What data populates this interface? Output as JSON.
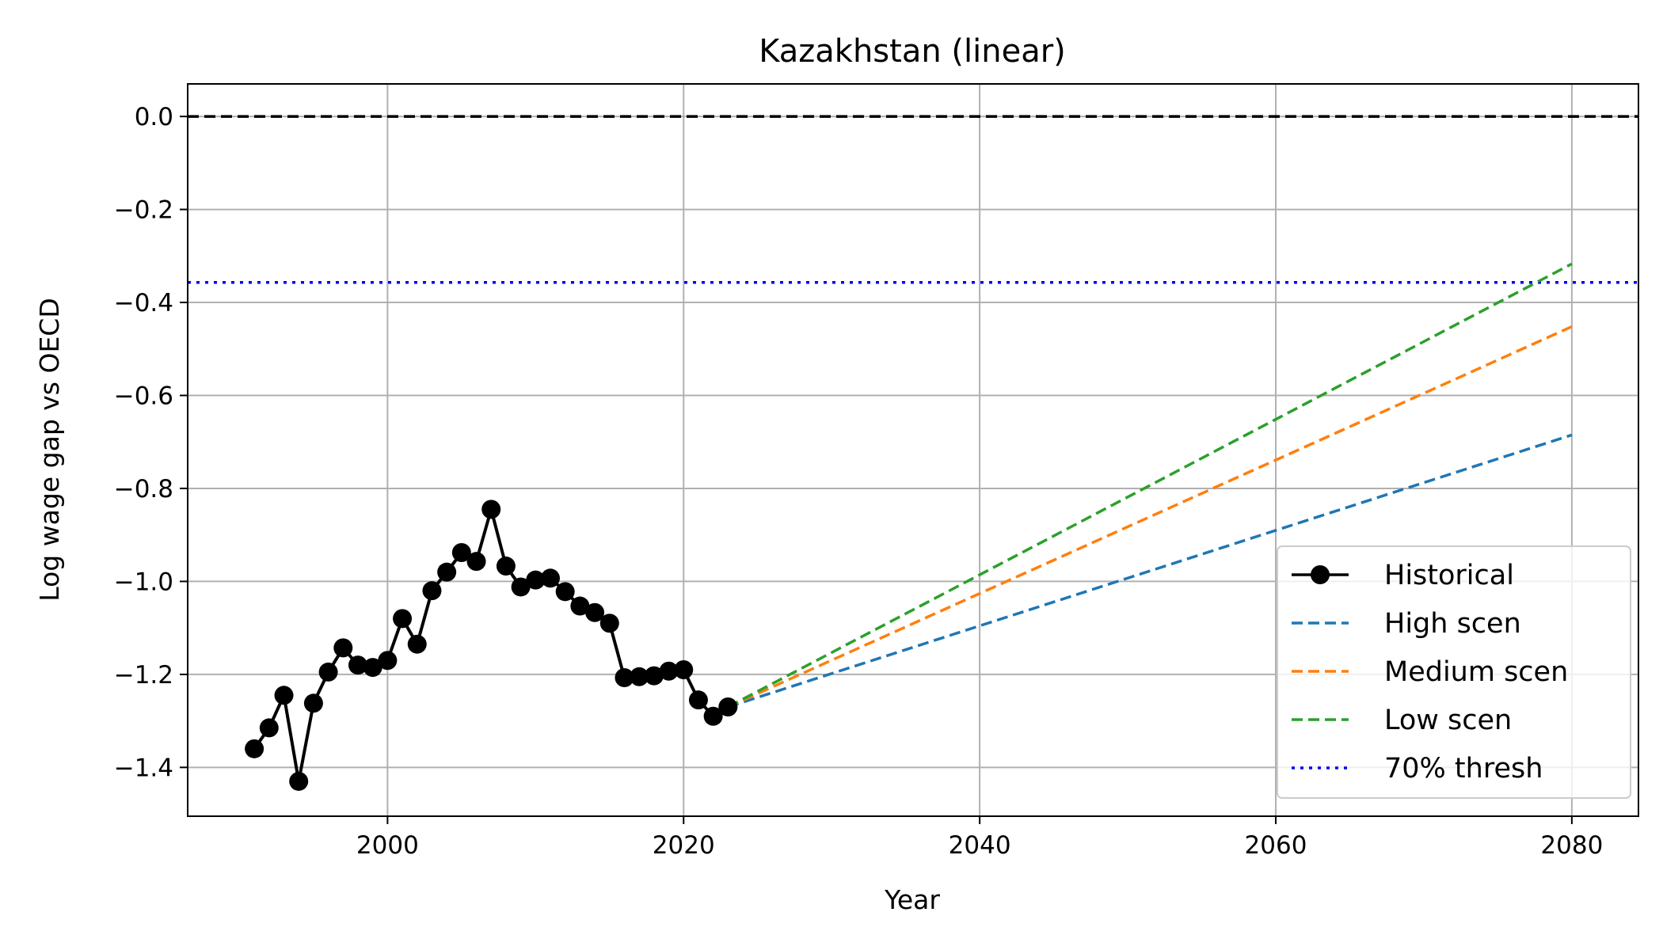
{
  "chart_data": {
    "type": "line",
    "title": "Kazakhstan (linear)",
    "xlabel": "Year",
    "ylabel": "Log wage gap vs OECD",
    "xlim": [
      1986.5,
      2084.5
    ],
    "ylim": [
      -1.505,
      0.07
    ],
    "xticks": [
      2000,
      2020,
      2040,
      2060,
      2080
    ],
    "yticks": [
      0.0,
      -0.2,
      -0.4,
      -0.6,
      -0.8,
      -1.0,
      -1.2,
      -1.4
    ],
    "xtick_labels": [
      "2000",
      "2020",
      "2040",
      "2060",
      "2080"
    ],
    "ytick_labels": [
      "0.0",
      "−0.2",
      "−0.4",
      "−0.6",
      "−0.8",
      "−1.0",
      "−1.2",
      "−1.4"
    ],
    "grid": true,
    "legend_position": "lower-right",
    "reference_lines": [
      {
        "y": 0.0,
        "color": "#000000",
        "style": "dashed"
      },
      {
        "name": "70% thresh",
        "y": -0.357,
        "color": "#0000ff",
        "style": "dotted"
      }
    ],
    "series": [
      {
        "name": "Historical",
        "color": "#000000",
        "style": "solid-marker",
        "x": [
          1991,
          1992,
          1993,
          1994,
          1995,
          1996,
          1997,
          1998,
          1999,
          2000,
          2001,
          2002,
          2003,
          2004,
          2005,
          2006,
          2007,
          2008,
          2009,
          2010,
          2011,
          2012,
          2013,
          2014,
          2015,
          2016,
          2017,
          2018,
          2019,
          2020,
          2021,
          2022,
          2023
        ],
        "y": [
          -1.36,
          -1.315,
          -1.245,
          -1.43,
          -1.262,
          -1.195,
          -1.143,
          -1.18,
          -1.185,
          -1.17,
          -1.08,
          -1.135,
          -1.02,
          -0.98,
          -0.938,
          -0.957,
          -0.845,
          -0.967,
          -1.012,
          -0.997,
          -0.993,
          -1.022,
          -1.053,
          -1.067,
          -1.09,
          -1.207,
          -1.205,
          -1.203,
          -1.193,
          -1.19,
          -1.255,
          -1.29,
          -1.27
        ]
      },
      {
        "name": "High scen",
        "color": "#1f77b4",
        "style": "dashed",
        "x": [
          2023,
          2080
        ],
        "y": [
          -1.27,
          -0.685
        ]
      },
      {
        "name": "Medium scen",
        "color": "#ff7f0e",
        "style": "dashed",
        "x": [
          2023,
          2080
        ],
        "y": [
          -1.27,
          -0.452
        ]
      },
      {
        "name": "Low scen",
        "color": "#2ca02c",
        "style": "dashed",
        "x": [
          2023,
          2080
        ],
        "y": [
          -1.27,
          -0.317
        ]
      }
    ],
    "legend": [
      {
        "label": "Historical",
        "color": "#000000",
        "style": "solid-marker"
      },
      {
        "label": "High scen",
        "color": "#1f77b4",
        "style": "dashed"
      },
      {
        "label": "Medium scen",
        "color": "#ff7f0e",
        "style": "dashed"
      },
      {
        "label": "Low scen",
        "color": "#2ca02c",
        "style": "dashed"
      },
      {
        "label": "70% thresh",
        "color": "#0000ff",
        "style": "dotted"
      }
    ]
  }
}
